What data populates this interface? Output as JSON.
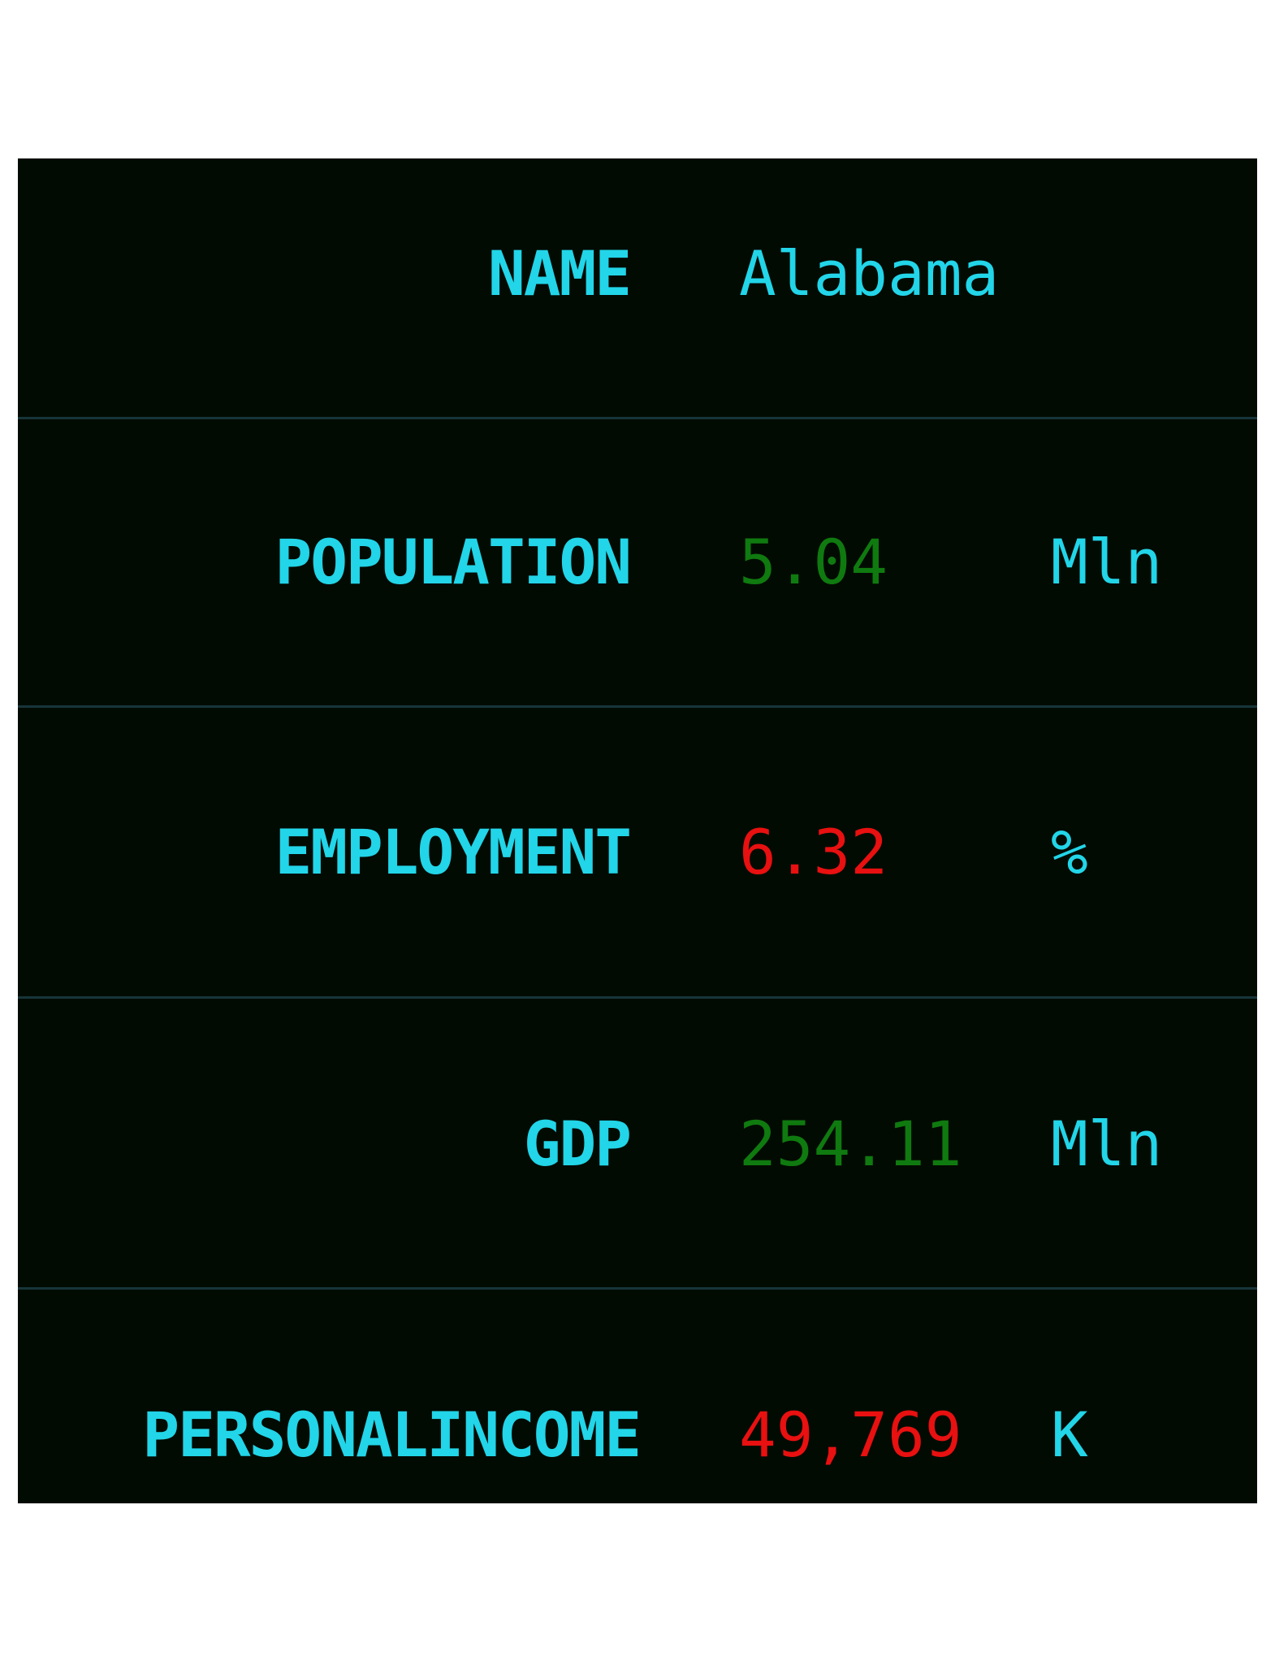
{
  "rows": [
    {
      "label": "NAME",
      "value": "Alabama",
      "unit": "",
      "value_color": "#22d5e8"
    },
    {
      "label": "POPULATION",
      "value": "5.04",
      "unit": "Mln",
      "value_color": "#0f7a0f"
    },
    {
      "label": "EMPLOYMENT",
      "value": "6.32",
      "unit": "%",
      "value_color": "#e81010"
    },
    {
      "label": "GDP",
      "value": "254.11",
      "unit": "Mln",
      "value_color": "#0f7a0f"
    },
    {
      "label": "PERSONALINCOME",
      "value": "49,769",
      "unit": "K",
      "value_color": "#e81010"
    }
  ],
  "colors": {
    "background": "#020b02",
    "label": "#22d5e8",
    "divider": "#17353a",
    "positive": "#0f7a0f",
    "negative": "#e81010"
  }
}
